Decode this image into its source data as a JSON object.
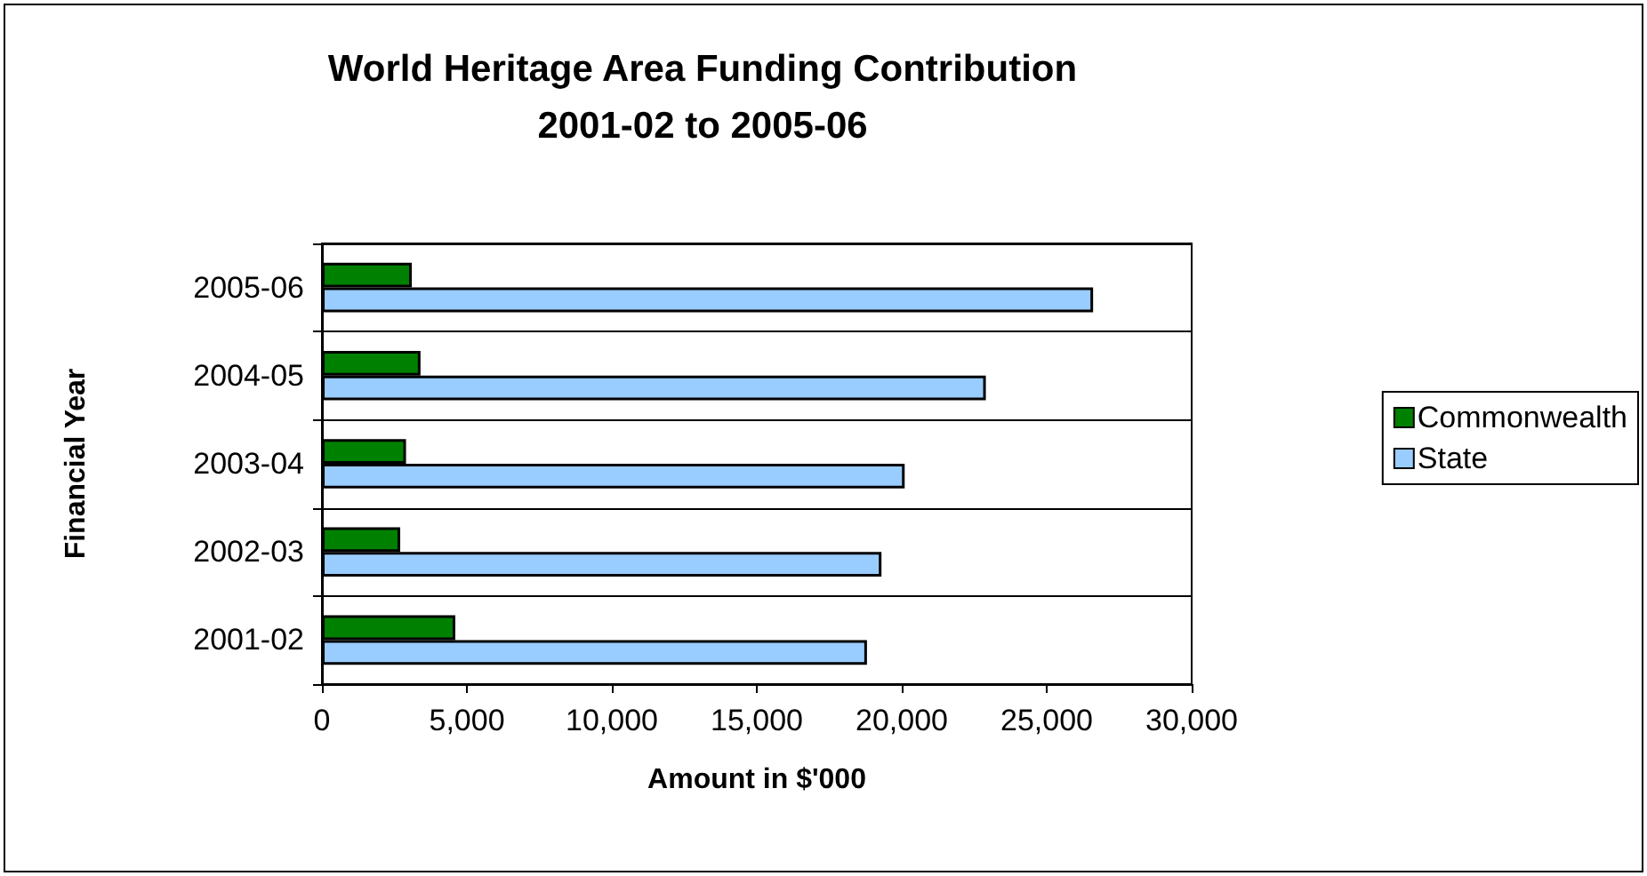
{
  "chart_data": {
    "type": "bar",
    "orientation": "horizontal",
    "title": "World Heritage Area Funding Contribution\n2001-02 to 2005-06",
    "xlabel": "Amount in $'000",
    "ylabel": "Financial Year",
    "categories": [
      "2005-06",
      "2004-05",
      "2003-04",
      "2002-03",
      "2001-02"
    ],
    "series": [
      {
        "name": "Commonwealth",
        "color": "#008000",
        "values": [
          3100,
          3400,
          2900,
          2700,
          4600
        ]
      },
      {
        "name": "State",
        "color": "#99ccff",
        "values": [
          26600,
          22900,
          20100,
          19300,
          18800
        ]
      }
    ],
    "xlim": [
      0,
      30000
    ],
    "xticks": [
      {
        "value": 0,
        "label": "0"
      },
      {
        "value": 5000,
        "label": "5,000"
      },
      {
        "value": 10000,
        "label": "10,000"
      },
      {
        "value": 15000,
        "label": "15,000"
      },
      {
        "value": 20000,
        "label": "20,000"
      },
      {
        "value": 25000,
        "label": "25,000"
      },
      {
        "value": 30000,
        "label": "30,000"
      }
    ],
    "grid": "y",
    "legend": "right"
  }
}
